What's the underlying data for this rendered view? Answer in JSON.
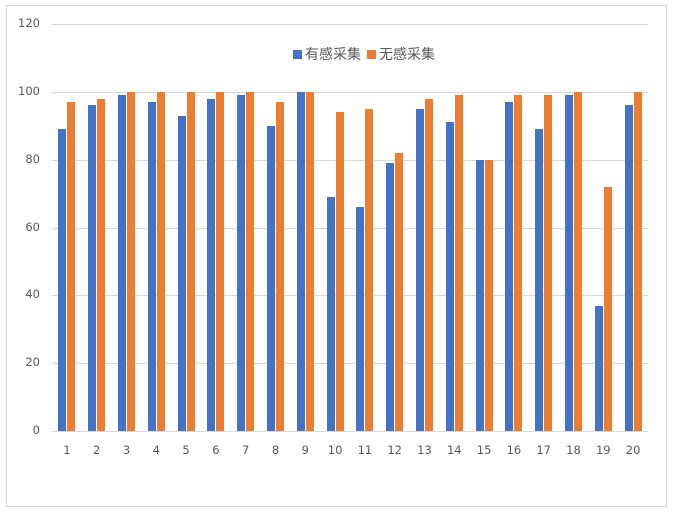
{
  "chart_data": {
    "type": "bar",
    "title": "",
    "xlabel": "",
    "ylabel": "",
    "ylim": [
      0,
      120
    ],
    "yticks": [
      0,
      20,
      40,
      60,
      80,
      100,
      120
    ],
    "grid": true,
    "legend_position": "top",
    "categories": [
      "1",
      "2",
      "3",
      "4",
      "5",
      "6",
      "7",
      "8",
      "9",
      "10",
      "11",
      "12",
      "13",
      "14",
      "15",
      "16",
      "17",
      "18",
      "19",
      "20"
    ],
    "series": [
      {
        "name": "有感采集",
        "color": "#4472c4",
        "values": [
          89,
          96,
          99,
          97,
          93,
          98,
          99,
          90,
          100,
          69,
          66,
          79,
          95,
          91,
          80,
          97,
          89,
          99,
          37,
          96
        ]
      },
      {
        "name": "无感采集",
        "color": "#ed7d31",
        "values": [
          97,
          98,
          100,
          100,
          100,
          100,
          100,
          97,
          100,
          94,
          95,
          82,
          98,
          99,
          80,
          99,
          99,
          100,
          72,
          100
        ]
      }
    ]
  },
  "legend": {
    "items": [
      {
        "label": "有感采集",
        "color": "#4472c4"
      },
      {
        "label": "无感采集",
        "color": "#ed7d31"
      }
    ]
  }
}
